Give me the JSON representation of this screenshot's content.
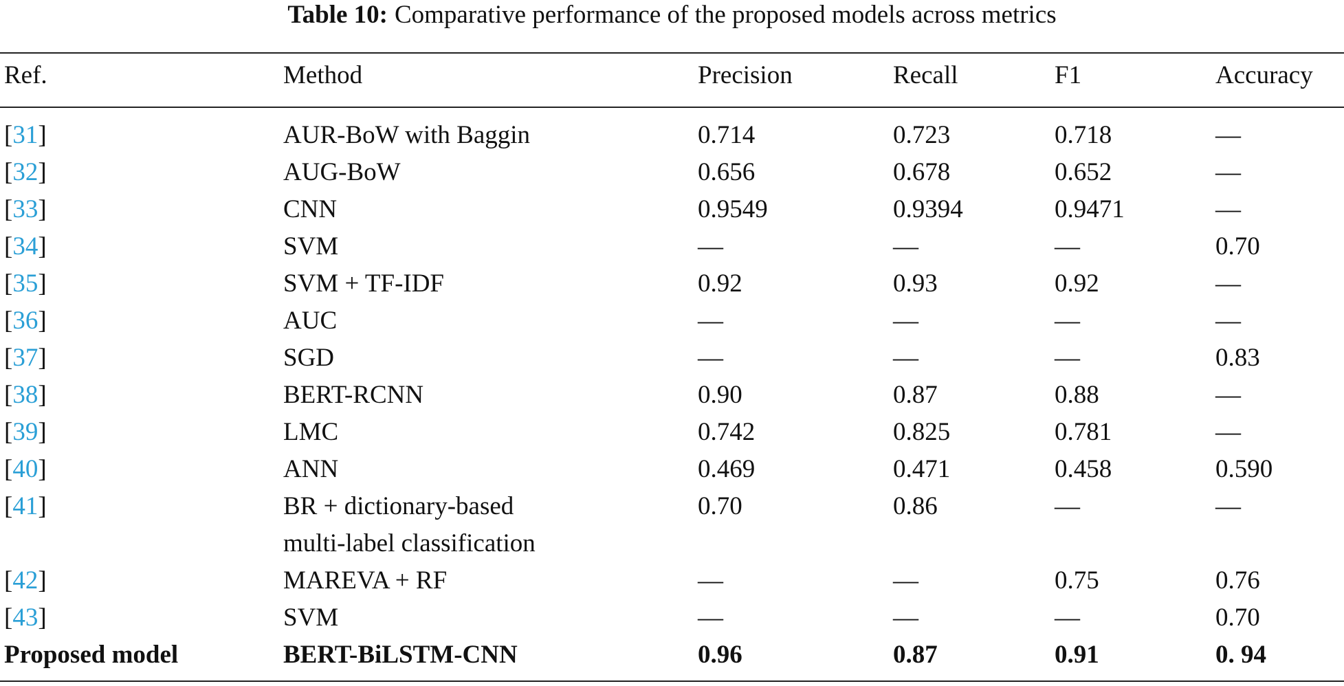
{
  "title": {
    "label": "Table 10:",
    "text": "Comparative performance of the proposed models across metrics"
  },
  "table": {
    "header": [
      "Ref.",
      "Method",
      "Precision",
      "Recall",
      "F1",
      "Accuracy"
    ],
    "rows": [
      [
        "[31]",
        "AUR-BoW with Baggin",
        "0.714",
        "0.723",
        "0.718",
        "—"
      ],
      [
        "[32]",
        "AUG-BoW",
        "0.656",
        "0.678",
        "0.652",
        "—"
      ],
      [
        "[33]",
        "CNN",
        "0.9549",
        "0.9394",
        "0.9471",
        "—"
      ],
      [
        "[34]",
        "SVM",
        "—",
        "—",
        "—",
        "0.70"
      ],
      [
        "[35]",
        "SVM + TF-IDF",
        "0.92",
        "0.93",
        "0.92",
        "—"
      ],
      [
        "[36]",
        "AUC",
        "—",
        "—",
        "—",
        "—"
      ],
      [
        "[37]",
        "SGD",
        "—",
        "—",
        "—",
        "0.83"
      ],
      [
        "[38]",
        "BERT-RCNN",
        "0.90",
        "0.87",
        "0.88",
        "—"
      ],
      [
        "[39]",
        "LMC",
        "0.742",
        "0.825",
        "0.781",
        "—"
      ],
      [
        "[40]",
        "ANN",
        "0.469",
        "0.471",
        "0.458",
        "0.590"
      ],
      [
        "[41]",
        "BR + dictionary-based\nmulti-label classification",
        "0.70",
        "0.86",
        "—",
        "—"
      ],
      [
        "[42]",
        "MAREVA + RF",
        "—",
        "—",
        "0.75",
        "0.76"
      ],
      [
        "[43]",
        "SVM",
        "—",
        "—",
        "—",
        "0.70"
      ],
      [
        "Proposed model",
        "BERT-BiLSTM-CNN",
        "0.96",
        "0.87",
        "0.91",
        "0. 94"
      ]
    ]
  }
}
